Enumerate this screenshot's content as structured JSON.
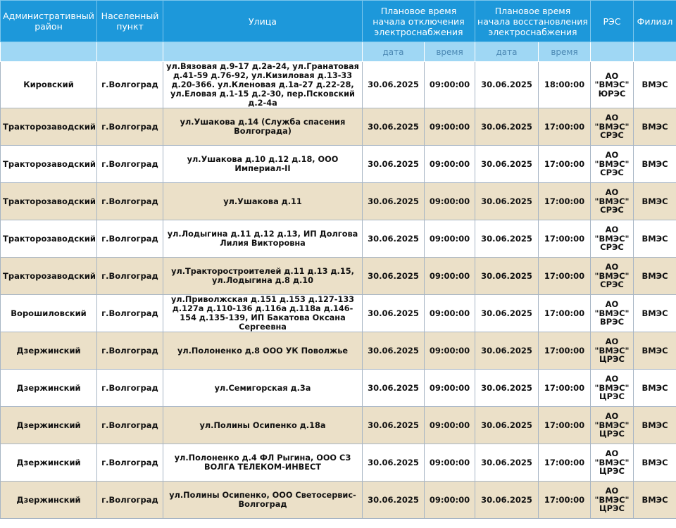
{
  "headers": {
    "district": "Административный район",
    "settlement": "Населенный пункт",
    "street": "Улица",
    "off_time": "Плановое время начала отключения электроснабжения",
    "on_time": "Плановое время начала восстановления электроснабжения",
    "res": "РЭС",
    "branch": "Филиал",
    "date": "дата",
    "time": "время"
  },
  "rows": [
    {
      "district": "Кировский",
      "settlement": "г.Волгоград",
      "street": "ул.Вязовая д.9-17 д.2а-24, ул.Гранатовая д.41-59 д.76-92, ул.Кизиловая д.13-33 д.20-366. ул.Кленовая д.1а-27 д.22-28, ул.Еловая д.1-15 д.2-30, пер.Псковский д.2-4а",
      "off_date": "30.06.2025",
      "off_time": "09:00:00",
      "on_date": "30.06.2025",
      "on_time": "18:00:00",
      "res": "АО \"ВМЭС\" ЮРЭС",
      "branch": "ВМЭС"
    },
    {
      "district": "Тракторозаводский",
      "settlement": "г.Волгоград",
      "street": "ул.Ушакова д.14 (Служба спасения Волгограда)",
      "off_date": "30.06.2025",
      "off_time": "09:00:00",
      "on_date": "30.06.2025",
      "on_time": "17:00:00",
      "res": "АО \"ВМЭС\" СРЭС",
      "branch": "ВМЭС"
    },
    {
      "district": "Тракторозаводский",
      "settlement": "г.Волгоград",
      "street": "ул.Ушакова д.10 д.12 д.18, ООО Империал-II",
      "off_date": "30.06.2025",
      "off_time": "09:00:00",
      "on_date": "30.06.2025",
      "on_time": "17:00:00",
      "res": "АО \"ВМЭС\" СРЭС",
      "branch": "ВМЭС"
    },
    {
      "district": "Тракторозаводский",
      "settlement": "г.Волгоград",
      "street": "ул.Ушакова д.11",
      "off_date": "30.06.2025",
      "off_time": "09:00:00",
      "on_date": "30.06.2025",
      "on_time": "17:00:00",
      "res": "АО \"ВМЭС\" СРЭС",
      "branch": "ВМЭС"
    },
    {
      "district": "Тракторозаводский",
      "settlement": "г.Волгоград",
      "street": "ул.Лодыгина д.11 д.12 д.13, ИП Долгова Лилия Викторовна",
      "off_date": "30.06.2025",
      "off_time": "09:00:00",
      "on_date": "30.06.2025",
      "on_time": "17:00:00",
      "res": "АО \"ВМЭС\" СРЭС",
      "branch": "ВМЭС"
    },
    {
      "district": "Тракторозаводский",
      "settlement": "г.Волгоград",
      "street": "ул.Тракторостроителей д.11 д.13 д.15, ул.Лодыгина д.8 д.10",
      "off_date": "30.06.2025",
      "off_time": "09:00:00",
      "on_date": "30.06.2025",
      "on_time": "17:00:00",
      "res": "АО \"ВМЭС\" СРЭС",
      "branch": "ВМЭС"
    },
    {
      "district": "Ворошиловский",
      "settlement": "г.Волгоград",
      "street": "ул.Приволжская д.151 д.153 д.127-133 д.127а д.110-136 д.116а д.118а д.146-154 д.135-139, ИП Бакатова Оксана Сергеевна",
      "off_date": "30.06.2025",
      "off_time": "09:00:00",
      "on_date": "30.06.2025",
      "on_time": "17:00:00",
      "res": "АО \"ВМЭС\" ВРЭС",
      "branch": "ВМЭС"
    },
    {
      "district": "Дзержинский",
      "settlement": "г.Волгоград",
      "street": "ул.Полоненко д.8 ООО УК Поволжье",
      "off_date": "30.06.2025",
      "off_time": "09:00:00",
      "on_date": "30.06.2025",
      "on_time": "17:00:00",
      "res": "АО \"ВМЭС\" ЦРЭС",
      "branch": "ВМЭС"
    },
    {
      "district": "Дзержинский",
      "settlement": "г.Волгоград",
      "street": "ул.Семигорская д.3а",
      "off_date": "30.06.2025",
      "off_time": "09:00:00",
      "on_date": "30.06.2025",
      "on_time": "17:00:00",
      "res": "АО \"ВМЭС\" ЦРЭС",
      "branch": "ВМЭС"
    },
    {
      "district": "Дзержинский",
      "settlement": "г.Волгоград",
      "street": "ул.Полины Осипенко д.18а",
      "off_date": "30.06.2025",
      "off_time": "09:00:00",
      "on_date": "30.06.2025",
      "on_time": "17:00:00",
      "res": "АО \"ВМЭС\" ЦРЭС",
      "branch": "ВМЭС"
    },
    {
      "district": "Дзержинский",
      "settlement": "г.Волгоград",
      "street": "ул.Полоненко д.4 ФЛ Рыгина, ООО СЗ ВОЛГА ТЕЛЕКОМ-ИНВЕСТ",
      "off_date": "30.06.2025",
      "off_time": "09:00:00",
      "on_date": "30.06.2025",
      "on_time": "17:00:00",
      "res": "АО \"ВМЭС\" ЦРЭС",
      "branch": "ВМЭС"
    },
    {
      "district": "Дзержинский",
      "settlement": "г.Волгоград",
      "street": "ул.Полины Осипенко, ООО Светосервис-Волгоград",
      "off_date": "30.06.2025",
      "off_time": "09:00:00",
      "on_date": "30.06.2025",
      "on_time": "17:00:00",
      "res": "АО \"ВМЭС\" ЦРЭС",
      "branch": "ВМЭС"
    }
  ]
}
